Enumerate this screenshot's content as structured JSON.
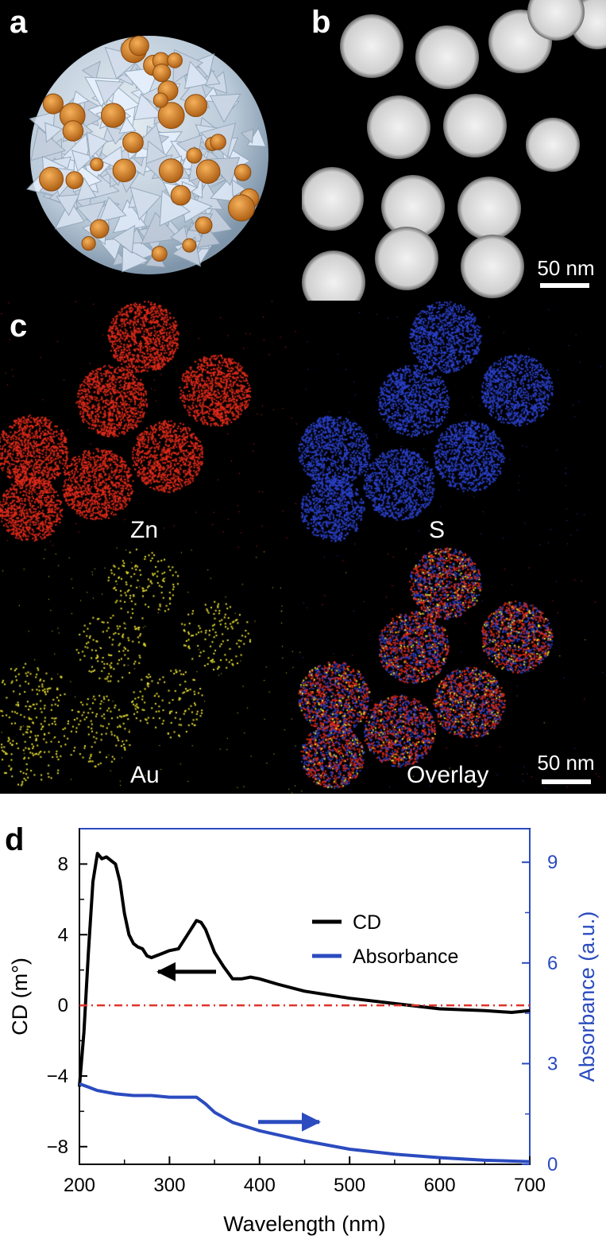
{
  "panels": {
    "a": {
      "label": "a"
    },
    "b": {
      "label": "b",
      "scale": "50 nm"
    },
    "c": {
      "label": "c",
      "scale": "50 nm",
      "maps": [
        "Zn",
        "S",
        "Au",
        "Overlay"
      ],
      "colors": {
        "Zn": "#e02a1a",
        "S": "#2a40c8",
        "Au": "#e8e030"
      }
    },
    "d": {
      "label": "d"
    }
  },
  "chart_data": {
    "type": "line",
    "xlabel": "Wavelength (nm)",
    "ylabel": "CD (m°)",
    "y2label": "Absorbance (a.u.)",
    "xlim": [
      200,
      700
    ],
    "ylim": [
      -9,
      10
    ],
    "y2lim": [
      0,
      10
    ],
    "xticks": [
      "200",
      "300",
      "400",
      "500",
      "600",
      "700"
    ],
    "yticks": [
      "8",
      "4",
      "0",
      "−4",
      "−8"
    ],
    "y2ticks": [
      "0",
      "3",
      "6",
      "9"
    ],
    "legend": {
      "position": "top-right",
      "entries": [
        "CD",
        "Absorbance"
      ]
    },
    "series": [
      {
        "name": "CD",
        "axis": "left",
        "color": "#000000",
        "x": [
          200,
          205,
          210,
          215,
          220,
          225,
          230,
          235,
          240,
          245,
          250,
          255,
          260,
          265,
          270,
          275,
          280,
          290,
          300,
          310,
          320,
          330,
          335,
          340,
          350,
          360,
          370,
          380,
          390,
          400,
          420,
          450,
          500,
          550,
          600,
          650,
          680,
          700
        ],
        "y": [
          -4.6,
          -1.5,
          3.0,
          7.0,
          8.6,
          8.3,
          8.4,
          8.2,
          8.0,
          7.0,
          5.2,
          4.0,
          3.5,
          3.3,
          3.2,
          2.8,
          2.7,
          2.9,
          3.1,
          3.2,
          4.0,
          4.8,
          4.7,
          4.3,
          3.0,
          2.2,
          1.5,
          1.5,
          1.6,
          1.5,
          1.2,
          0.8,
          0.4,
          0.1,
          -0.2,
          -0.3,
          -0.4,
          -0.3
        ]
      },
      {
        "name": "Absorbance",
        "axis": "right",
        "color": "#2b4bbf",
        "x": [
          200,
          210,
          220,
          240,
          260,
          280,
          300,
          320,
          330,
          340,
          350,
          370,
          400,
          450,
          500,
          550,
          600,
          650,
          700
        ],
        "y": [
          2.4,
          2.3,
          2.2,
          2.1,
          2.05,
          2.05,
          2.0,
          2.0,
          2.0,
          1.8,
          1.55,
          1.25,
          1.0,
          0.7,
          0.45,
          0.3,
          0.2,
          0.12,
          0.08
        ]
      },
      {
        "name": "",
        "axis": "left",
        "color": "#e0342a",
        "style": "dash-dot",
        "x": [
          200,
          700
        ],
        "y": [
          0,
          0
        ]
      }
    ]
  }
}
